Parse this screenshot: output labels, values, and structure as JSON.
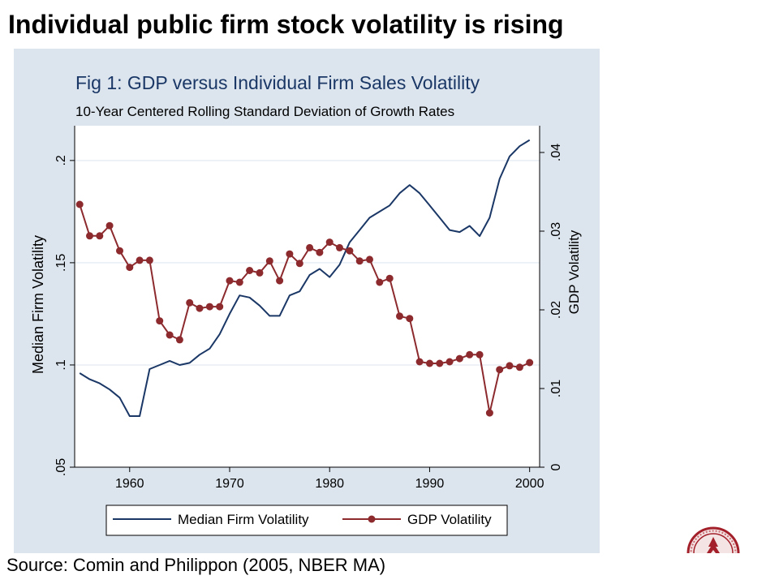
{
  "slide": {
    "title": "Individual public firm stock volatility is rising",
    "source": "Source: Comin and Philippon (2005, NBER MA)",
    "logo_icon": "university-seal-icon"
  },
  "chart_data": {
    "type": "line",
    "title": "Fig 1: GDP versus Individual Firm Sales Volatility",
    "subtitle": "10-Year Centered Rolling Standard Deviation of Growth Rates",
    "ylabel": "Median Firm Volatility",
    "y2label": "GDP Volatility",
    "xlim": [
      1954.5,
      2001
    ],
    "ylim": [
      0.05,
      0.217
    ],
    "y2lim": [
      0,
      0.0434
    ],
    "xticks": [
      1960,
      1970,
      1980,
      1990,
      2000
    ],
    "yticks": [
      ".05",
      ".1",
      ".15",
      ".2"
    ],
    "y2ticks": [
      "0",
      ".01",
      ".02",
      ".03",
      ".04"
    ],
    "grid": true,
    "legend_position": "bottom",
    "colors": {
      "background": "#dce5ee",
      "plot": "#ffffff",
      "firm": "#1a3766",
      "gdp": "#8c2a2e",
      "grid": "#e8eef4",
      "title": "#1a3766"
    },
    "series": [
      {
        "name": "Median Firm Volatility",
        "axis": "left",
        "markers": false,
        "x": [
          1955,
          1956,
          1957,
          1958,
          1959,
          1960,
          1961,
          1962,
          1963,
          1964,
          1965,
          1966,
          1967,
          1968,
          1969,
          1970,
          1971,
          1972,
          1973,
          1974,
          1975,
          1976,
          1977,
          1978,
          1979,
          1980,
          1981,
          1982,
          1983,
          1984,
          1985,
          1986,
          1987,
          1988,
          1989,
          1990,
          1991,
          1992,
          1993,
          1994,
          1995,
          1996,
          1997,
          1998,
          1999,
          2000
        ],
        "y": [
          0.096,
          0.093,
          0.091,
          0.088,
          0.084,
          0.075,
          0.075,
          0.098,
          0.1,
          0.102,
          0.1,
          0.101,
          0.105,
          0.108,
          0.115,
          0.125,
          0.134,
          0.133,
          0.129,
          0.124,
          0.124,
          0.134,
          0.136,
          0.144,
          0.147,
          0.143,
          0.149,
          0.16,
          0.166,
          0.172,
          0.175,
          0.178,
          0.184,
          0.188,
          0.184,
          0.178,
          0.172,
          0.166,
          0.165,
          0.168,
          0.163,
          0.172,
          0.191,
          0.202,
          0.207,
          0.21
        ]
      },
      {
        "name": "GDP Volatility",
        "axis": "right",
        "markers": true,
        "x": [
          1955,
          1956,
          1957,
          1958,
          1959,
          1960,
          1961,
          1962,
          1963,
          1964,
          1965,
          1966,
          1967,
          1968,
          1969,
          1970,
          1971,
          1972,
          1973,
          1974,
          1975,
          1976,
          1977,
          1978,
          1979,
          1980,
          1981,
          1982,
          1983,
          1984,
          1985,
          1986,
          1987,
          1988,
          1989,
          1990,
          1991,
          1992,
          1993,
          1994,
          1995,
          1996,
          1997,
          1998,
          1999,
          2000
        ],
        "y": [
          0.0334,
          0.0294,
          0.0294,
          0.0307,
          0.0275,
          0.0254,
          0.0263,
          0.0263,
          0.0186,
          0.0168,
          0.0162,
          0.0209,
          0.0202,
          0.0204,
          0.0204,
          0.0237,
          0.0235,
          0.025,
          0.0247,
          0.0262,
          0.0237,
          0.0271,
          0.0259,
          0.0279,
          0.0273,
          0.0286,
          0.0279,
          0.0275,
          0.0262,
          0.0264,
          0.0235,
          0.024,
          0.0192,
          0.0189,
          0.0134,
          0.0132,
          0.0132,
          0.0134,
          0.0138,
          0.0143,
          0.0143,
          0.0069,
          0.0124,
          0.0129,
          0.0127,
          0.0133
        ]
      }
    ]
  }
}
